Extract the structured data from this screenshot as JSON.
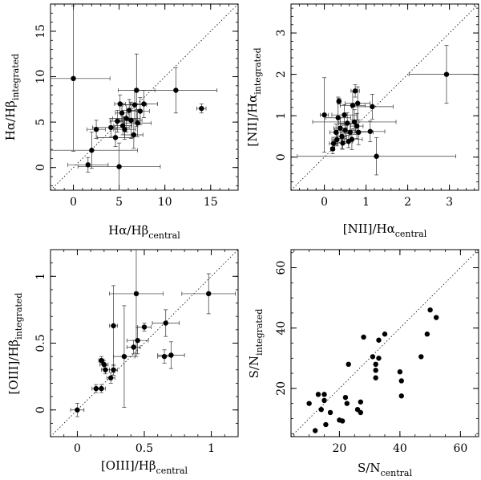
{
  "chart_data": [
    {
      "type": "scatter",
      "title": "",
      "xlabel": "Hα/Hβ",
      "xlabel_sub": "central",
      "ylabel": "Hα/Hβ",
      "ylabel_sub": "integrated",
      "xlim": [
        -2.5,
        18
      ],
      "ylim": [
        -2.5,
        18
      ],
      "xticks": [
        0,
        5,
        10,
        15
      ],
      "yticks": [
        0,
        5,
        10,
        15
      ],
      "xminor": 1,
      "yminor": 1,
      "identity_line": true,
      "points": [
        {
          "x": 0.0,
          "y": 9.8,
          "xerr": 4.0,
          "yerr": 8.0
        },
        {
          "x": 1.6,
          "y": 0.3,
          "xerr": 2.2,
          "yerr": 0.8
        },
        {
          "x": 2.0,
          "y": 1.9,
          "xerr": 5.0,
          "yerr": 2.0
        },
        {
          "x": 2.5,
          "y": 4.2,
          "xerr": 1.0,
          "yerr": 1.0
        },
        {
          "x": 4.1,
          "y": 4.4,
          "xerr": 2.0,
          "yerr": 1.0
        },
        {
          "x": 4.6,
          "y": 3.3,
          "xerr": 2.0,
          "yerr": 1.0
        },
        {
          "x": 4.8,
          "y": 5.1,
          "xerr": 0.8,
          "yerr": 1.2
        },
        {
          "x": 5.0,
          "y": 0.1,
          "xerr": 4.5,
          "yerr": 2.6
        },
        {
          "x": 5.1,
          "y": 7.0,
          "xerr": 0.6,
          "yerr": 1.0
        },
        {
          "x": 5.3,
          "y": 6.0,
          "xerr": 0.7,
          "yerr": 1.0
        },
        {
          "x": 5.4,
          "y": 4.6,
          "xerr": 1.0,
          "yerr": 1.0
        },
        {
          "x": 5.6,
          "y": 4.2,
          "xerr": 1.2,
          "yerr": 1.1
        },
        {
          "x": 5.8,
          "y": 5.4,
          "xerr": 1.5,
          "yerr": 1.5
        },
        {
          "x": 6.1,
          "y": 6.3,
          "xerr": 0.8,
          "yerr": 1.2
        },
        {
          "x": 6.3,
          "y": 5.2,
          "xerr": 1.2,
          "yerr": 2.0
        },
        {
          "x": 6.6,
          "y": 3.6,
          "xerr": 1.0,
          "yerr": 1.5
        },
        {
          "x": 6.7,
          "y": 6.9,
          "xerr": 1.3,
          "yerr": 1.6
        },
        {
          "x": 6.9,
          "y": 8.5,
          "xerr": 2.0,
          "yerr": 4.0
        },
        {
          "x": 7.0,
          "y": 4.9,
          "xerr": 1.5,
          "yerr": 1.5
        },
        {
          "x": 7.3,
          "y": 6.2,
          "xerr": 1.0,
          "yerr": 1.5
        },
        {
          "x": 7.7,
          "y": 7.0,
          "xerr": 1.5,
          "yerr": 1.5
        },
        {
          "x": 11.2,
          "y": 8.5,
          "xerr": 4.5,
          "yerr": 2.5
        },
        {
          "x": 14.0,
          "y": 6.5,
          "xerr": 0.5,
          "yerr": 0.5
        }
      ]
    },
    {
      "type": "scatter",
      "title": "",
      "xlabel": "[NII]/Hα",
      "xlabel_sub": "central",
      "ylabel": "[NII]/Hα",
      "ylabel_sub": "integrated",
      "xlim": [
        -0.8,
        3.7
      ],
      "ylim": [
        -0.8,
        3.7
      ],
      "xticks": [
        0,
        1,
        2,
        3
      ],
      "yticks": [
        0,
        1,
        2,
        3
      ],
      "xminor": 0.2,
      "yminor": 0.2,
      "identity_line": true,
      "points": [
        {
          "x": 0.0,
          "y": 1.02,
          "xerr": 0.1,
          "yerr": 0.9
        },
        {
          "x": 0.2,
          "y": 0.2,
          "xerr": 0.05,
          "yerr": 0.12
        },
        {
          "x": 0.22,
          "y": 0.33,
          "xerr": 0.1,
          "yerr": 0.15
        },
        {
          "x": 0.28,
          "y": 0.6,
          "xerr": 0.15,
          "yerr": 0.2
        },
        {
          "x": 0.3,
          "y": 0.42,
          "xerr": 0.12,
          "yerr": 0.15
        },
        {
          "x": 0.33,
          "y": 0.95,
          "xerr": 0.3,
          "yerr": 0.5
        },
        {
          "x": 0.35,
          "y": 1.35,
          "xerr": 0.05,
          "yerr": 0.07
        },
        {
          "x": 0.38,
          "y": 0.7,
          "xerr": 0.15,
          "yerr": 0.25
        },
        {
          "x": 0.42,
          "y": 0.5,
          "xerr": 0.12,
          "yerr": 0.3
        },
        {
          "x": 0.44,
          "y": 0.34,
          "xerr": 0.15,
          "yerr": 0.15
        },
        {
          "x": 0.48,
          "y": 1.02,
          "xerr": 0.3,
          "yerr": 0.25
        },
        {
          "x": 0.5,
          "y": 0.65,
          "xerr": 0.25,
          "yerr": 0.2
        },
        {
          "x": 0.55,
          "y": 0.82,
          "xerr": 0.2,
          "yerr": 0.25
        },
        {
          "x": 0.58,
          "y": 0.38,
          "xerr": 0.1,
          "yerr": 0.15
        },
        {
          "x": 0.62,
          "y": 0.6,
          "xerr": 0.15,
          "yerr": 0.2
        },
        {
          "x": 0.66,
          "y": 0.43,
          "xerr": 0.25,
          "yerr": 0.25
        },
        {
          "x": 0.68,
          "y": 1.25,
          "xerr": 0.3,
          "yerr": 0.35
        },
        {
          "x": 0.72,
          "y": 0.85,
          "xerr": 1.0,
          "yerr": 0.3
        },
        {
          "x": 0.74,
          "y": 1.6,
          "xerr": 0.1,
          "yerr": 0.15
        },
        {
          "x": 0.78,
          "y": 0.75,
          "xerr": 0.15,
          "yerr": 0.3
        },
        {
          "x": 0.8,
          "y": 1.3,
          "xerr": 0.3,
          "yerr": 0.4
        },
        {
          "x": 0.82,
          "y": 0.6,
          "xerr": 0.35,
          "yerr": 0.3
        },
        {
          "x": 1.1,
          "y": 0.62,
          "xerr": 0.35,
          "yerr": 0.25
        },
        {
          "x": 1.15,
          "y": 1.22,
          "xerr": 0.5,
          "yerr": 0.3
        },
        {
          "x": 1.25,
          "y": 0.02,
          "xerr": 1.9,
          "yerr": 0.45
        },
        {
          "x": 2.93,
          "y": 2.0,
          "xerr": 0.9,
          "yerr": 0.7
        }
      ]
    },
    {
      "type": "scatter",
      "title": "",
      "xlabel": "[OIII]/Hβ",
      "xlabel_sub": "central",
      "ylabel": "[OIII]/Hβ",
      "ylabel_sub": "integrated",
      "xlim": [
        -0.2,
        1.2
      ],
      "ylim": [
        -0.2,
        1.2
      ],
      "xticks": [
        0,
        0.5,
        1
      ],
      "yticks": [
        0,
        0.5,
        1
      ],
      "xminor": 0.1,
      "yminor": 0.1,
      "identity_line": true,
      "points": [
        {
          "x": 0.0,
          "y": 0.0,
          "xerr": 0.05,
          "yerr": 0.05
        },
        {
          "x": 0.14,
          "y": 0.16,
          "xerr": 0.03,
          "yerr": 0.03
        },
        {
          "x": 0.18,
          "y": 0.16,
          "xerr": 0.03,
          "yerr": 0.03
        },
        {
          "x": 0.18,
          "y": 0.37,
          "xerr": 0.02,
          "yerr": 0.03
        },
        {
          "x": 0.2,
          "y": 0.34,
          "xerr": 0.03,
          "yerr": 0.03
        },
        {
          "x": 0.21,
          "y": 0.3,
          "xerr": 0.03,
          "yerr": 0.03
        },
        {
          "x": 0.25,
          "y": 0.24,
          "xerr": 0.03,
          "yerr": 0.04
        },
        {
          "x": 0.27,
          "y": 0.3,
          "xerr": 0.03,
          "yerr": 0.04
        },
        {
          "x": 0.27,
          "y": 0.63,
          "xerr": 0.03,
          "yerr": 0.3
        },
        {
          "x": 0.35,
          "y": 0.4,
          "xerr": 0.08,
          "yerr": 0.38
        },
        {
          "x": 0.42,
          "y": 0.47,
          "xerr": 0.05,
          "yerr": 0.05
        },
        {
          "x": 0.44,
          "y": 0.87,
          "xerr": 0.2,
          "yerr": 0.47
        },
        {
          "x": 0.45,
          "y": 0.52,
          "xerr": 0.08,
          "yerr": 0.1
        },
        {
          "x": 0.5,
          "y": 0.62,
          "xerr": 0.05,
          "yerr": 0.03
        },
        {
          "x": 0.65,
          "y": 0.4,
          "xerr": 0.05,
          "yerr": 0.05
        },
        {
          "x": 0.66,
          "y": 0.65,
          "xerr": 0.1,
          "yerr": 0.1
        },
        {
          "x": 0.7,
          "y": 0.41,
          "xerr": 0.1,
          "yerr": 0.1
        },
        {
          "x": 0.98,
          "y": 0.87,
          "xerr": 0.2,
          "yerr": 0.15
        }
      ]
    },
    {
      "type": "scatter",
      "title": "",
      "xlabel": "S/N",
      "xlabel_sub": "central",
      "ylabel": "S/N",
      "ylabel_sub": "integrated",
      "xlim": [
        4,
        66
      ],
      "ylim": [
        4,
        66
      ],
      "xticks": [
        20,
        40,
        60
      ],
      "yticks": [
        20,
        40,
        60
      ],
      "xminor": 5,
      "yminor": 5,
      "identity_line": true,
      "points": [
        {
          "x": 10,
          "y": 15
        },
        {
          "x": 12,
          "y": 6
        },
        {
          "x": 13,
          "y": 18
        },
        {
          "x": 14,
          "y": 13
        },
        {
          "x": 15,
          "y": 18
        },
        {
          "x": 15,
          "y": 16
        },
        {
          "x": 15.5,
          "y": 8
        },
        {
          "x": 17,
          "y": 12
        },
        {
          "x": 20,
          "y": 9.5
        },
        {
          "x": 21,
          "y": 9.2
        },
        {
          "x": 22,
          "y": 17
        },
        {
          "x": 22.5,
          "y": 15
        },
        {
          "x": 23,
          "y": 28
        },
        {
          "x": 26,
          "y": 13
        },
        {
          "x": 27,
          "y": 15.5
        },
        {
          "x": 27,
          "y": 12
        },
        {
          "x": 28,
          "y": 37
        },
        {
          "x": 31,
          "y": 30.5
        },
        {
          "x": 32,
          "y": 28
        },
        {
          "x": 32,
          "y": 26
        },
        {
          "x": 32,
          "y": 23.5
        },
        {
          "x": 33,
          "y": 30
        },
        {
          "x": 33,
          "y": 36
        },
        {
          "x": 35,
          "y": 38
        },
        {
          "x": 40,
          "y": 25.5
        },
        {
          "x": 40.5,
          "y": 22.5
        },
        {
          "x": 40.5,
          "y": 17.5
        },
        {
          "x": 47,
          "y": 30.5
        },
        {
          "x": 49,
          "y": 38
        },
        {
          "x": 50,
          "y": 46
        },
        {
          "x": 52,
          "y": 43.5
        }
      ]
    }
  ]
}
